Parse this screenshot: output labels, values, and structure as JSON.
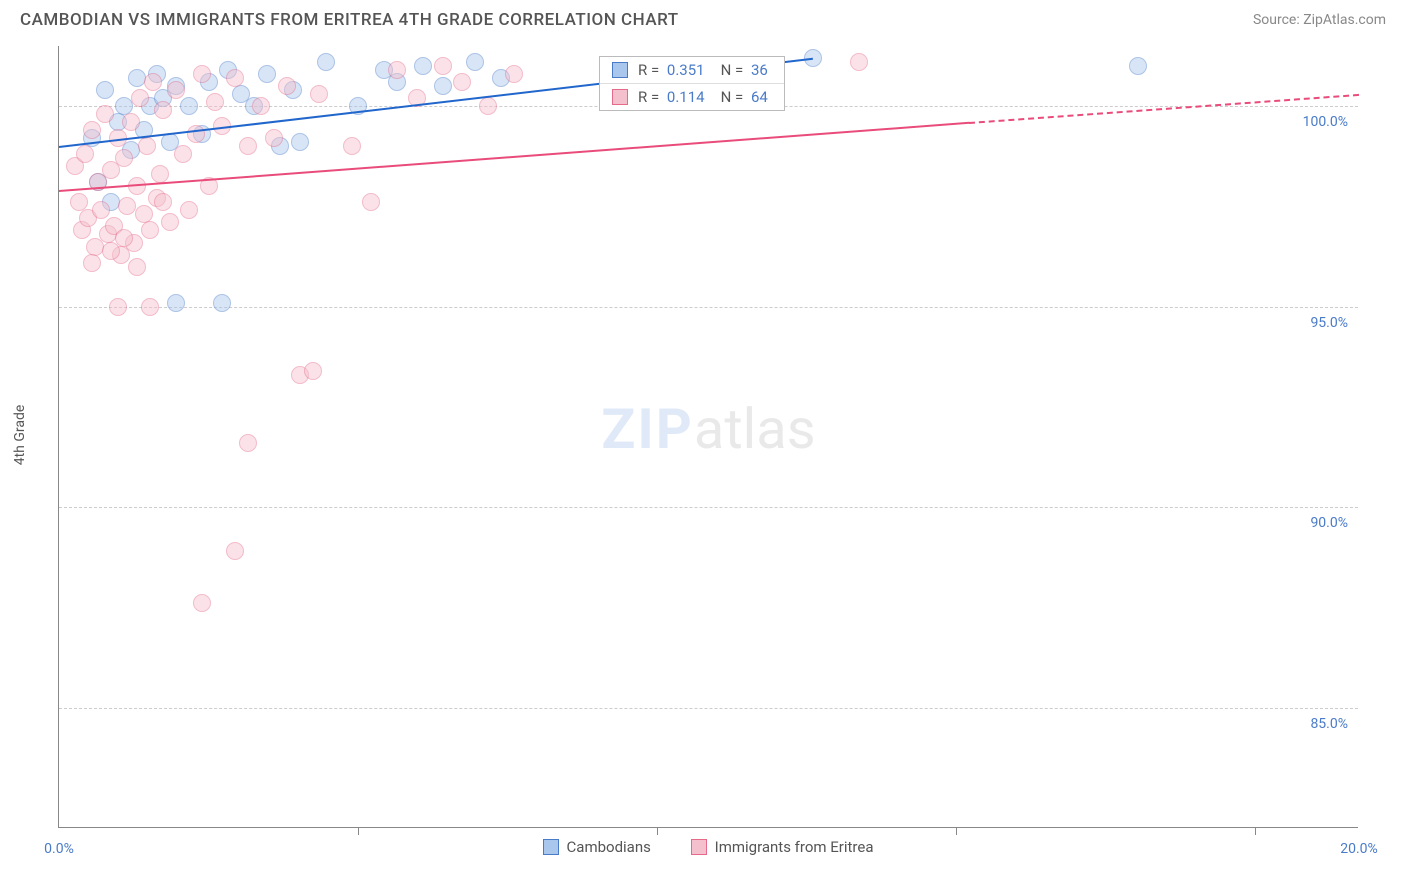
{
  "title": "CAMBODIAN VS IMMIGRANTS FROM ERITREA 4TH GRADE CORRELATION CHART",
  "source": "Source: ZipAtlas.com",
  "ylabel": "4th Grade",
  "watermark": {
    "zip": "ZIP",
    "atlas": "atlas"
  },
  "chart": {
    "type": "scatter",
    "background_color": "#ffffff",
    "grid_color": "#cccccc",
    "axis_color": "#888888",
    "tick_label_color": "#4a7bc9",
    "marker_radius": 9,
    "marker_opacity": 0.45,
    "xlim": [
      0.0,
      20.0
    ],
    "ylim": [
      82.0,
      101.5
    ],
    "xticks": [
      0.0,
      20.0
    ],
    "xtick_labels": [
      "0.0%",
      "20.0%"
    ],
    "yticks": [
      85.0,
      90.0,
      95.0,
      100.0
    ],
    "ytick_labels": [
      "85.0%",
      "90.0%",
      "95.0%",
      "100.0%"
    ],
    "x_minor_ticks": [
      4.6,
      9.2,
      13.8,
      18.4
    ],
    "series": [
      {
        "name": "Cambodians",
        "color_fill": "#a9c6ec",
        "color_stroke": "#4a7bc9",
        "trend_color": "#2166cc",
        "R": "0.351",
        "N": "36",
        "trend": {
          "x1": 0.0,
          "y1": 99.0,
          "x2": 11.6,
          "y2": 101.2
        },
        "trend_dash": null,
        "points": [
          [
            0.5,
            99.2
          ],
          [
            0.6,
            98.1
          ],
          [
            0.7,
            100.4
          ],
          [
            0.8,
            97.6
          ],
          [
            0.9,
            99.6
          ],
          [
            1.0,
            100.0
          ],
          [
            1.1,
            98.9
          ],
          [
            1.2,
            100.7
          ],
          [
            1.3,
            99.4
          ],
          [
            1.4,
            100.0
          ],
          [
            1.5,
            100.8
          ],
          [
            1.6,
            100.2
          ],
          [
            1.7,
            99.1
          ],
          [
            1.8,
            100.5
          ],
          [
            2.0,
            100.0
          ],
          [
            2.2,
            99.3
          ],
          [
            2.3,
            100.6
          ],
          [
            2.5,
            95.1
          ],
          [
            2.6,
            100.9
          ],
          [
            2.8,
            100.3
          ],
          [
            3.0,
            100.0
          ],
          [
            3.2,
            100.8
          ],
          [
            3.4,
            99.0
          ],
          [
            3.6,
            100.4
          ],
          [
            3.7,
            99.1
          ],
          [
            4.1,
            101.1
          ],
          [
            4.6,
            100.0
          ],
          [
            5.0,
            100.9
          ],
          [
            5.2,
            100.6
          ],
          [
            5.6,
            101.0
          ],
          [
            5.9,
            100.5
          ],
          [
            6.4,
            101.1
          ],
          [
            6.8,
            100.7
          ],
          [
            1.8,
            95.1
          ],
          [
            11.6,
            101.2
          ],
          [
            16.6,
            101.0
          ]
        ]
      },
      {
        "name": "Immigrants from Eritrea",
        "color_fill": "#f4c0cd",
        "color_stroke": "#e56b8b",
        "trend_color": "#e94b7a",
        "R": "0.114",
        "N": "64",
        "trend": {
          "x1": 0.0,
          "y1": 97.9,
          "x2": 14.0,
          "y2": 99.6
        },
        "trend_dash": {
          "x1": 14.0,
          "y1": 99.6,
          "x2": 20.0,
          "y2": 100.3
        },
        "points": [
          [
            0.25,
            98.5
          ],
          [
            0.3,
            97.6
          ],
          [
            0.35,
            96.9
          ],
          [
            0.4,
            98.8
          ],
          [
            0.45,
            97.2
          ],
          [
            0.5,
            99.4
          ],
          [
            0.55,
            96.5
          ],
          [
            0.6,
            98.1
          ],
          [
            0.65,
            97.4
          ],
          [
            0.7,
            99.8
          ],
          [
            0.75,
            96.8
          ],
          [
            0.8,
            98.4
          ],
          [
            0.85,
            97.0
          ],
          [
            0.9,
            99.2
          ],
          [
            0.95,
            96.3
          ],
          [
            1.0,
            98.7
          ],
          [
            1.05,
            97.5
          ],
          [
            1.1,
            99.6
          ],
          [
            1.15,
            96.6
          ],
          [
            1.2,
            98.0
          ],
          [
            1.25,
            100.2
          ],
          [
            1.3,
            97.3
          ],
          [
            1.35,
            99.0
          ],
          [
            1.4,
            96.9
          ],
          [
            1.45,
            100.6
          ],
          [
            1.5,
            97.7
          ],
          [
            1.55,
            98.3
          ],
          [
            1.6,
            99.9
          ],
          [
            1.7,
            97.1
          ],
          [
            1.8,
            100.4
          ],
          [
            1.9,
            98.8
          ],
          [
            2.0,
            97.4
          ],
          [
            2.1,
            99.3
          ],
          [
            2.2,
            100.8
          ],
          [
            2.3,
            98.0
          ],
          [
            2.4,
            100.1
          ],
          [
            2.5,
            99.5
          ],
          [
            2.7,
            100.7
          ],
          [
            2.9,
            99.0
          ],
          [
            3.1,
            100.0
          ],
          [
            3.3,
            99.2
          ],
          [
            3.5,
            100.5
          ],
          [
            3.7,
            93.3
          ],
          [
            3.9,
            93.4
          ],
          [
            4.0,
            100.3
          ],
          [
            4.5,
            99.0
          ],
          [
            4.8,
            97.6
          ],
          [
            5.2,
            100.9
          ],
          [
            5.5,
            100.2
          ],
          [
            5.9,
            101.0
          ],
          [
            6.2,
            100.6
          ],
          [
            6.6,
            100.0
          ],
          [
            7.0,
            100.8
          ],
          [
            12.3,
            101.1
          ],
          [
            0.9,
            95.0
          ],
          [
            1.4,
            95.0
          ],
          [
            2.9,
            91.6
          ],
          [
            2.7,
            88.9
          ],
          [
            2.2,
            87.6
          ],
          [
            0.5,
            96.1
          ],
          [
            0.8,
            96.4
          ],
          [
            1.0,
            96.7
          ],
          [
            1.6,
            97.6
          ],
          [
            1.2,
            96.0
          ]
        ]
      }
    ]
  },
  "corr_box": {
    "r_label": "R =",
    "n_label": "N ="
  },
  "legend": {
    "item1": "Cambodians",
    "item2": "Immigrants from Eritrea"
  }
}
